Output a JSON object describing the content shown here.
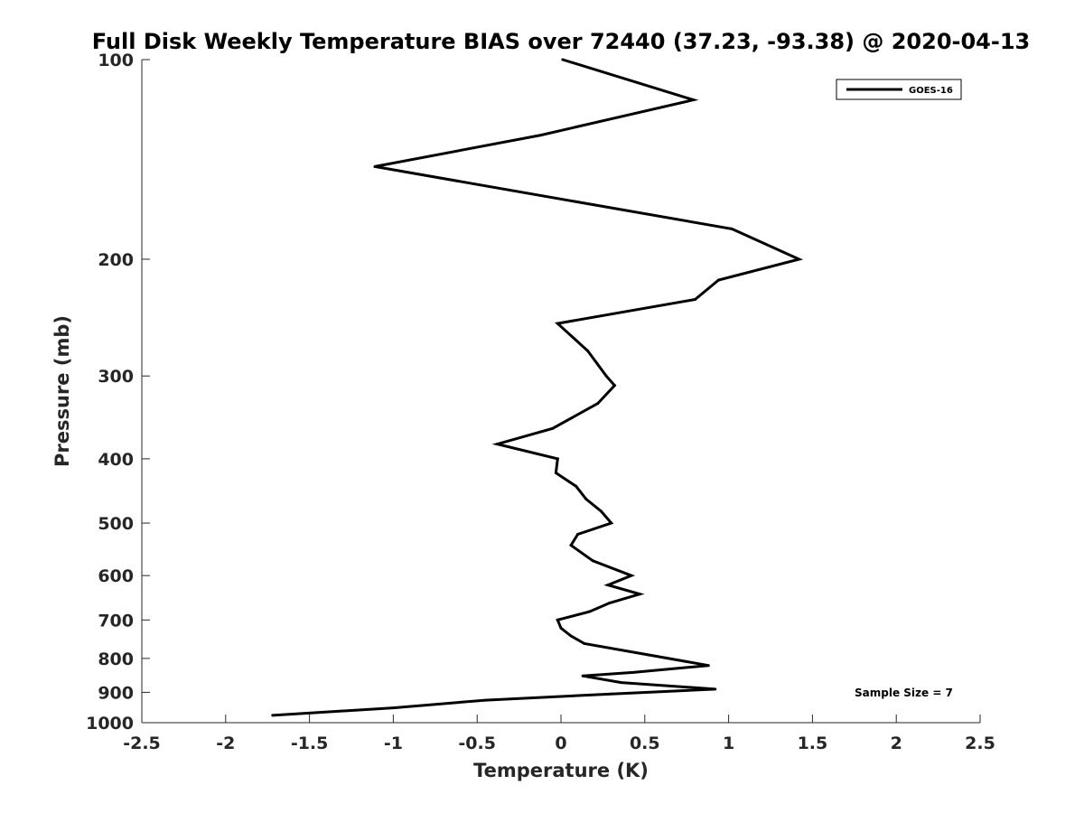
{
  "chart_data": {
    "type": "line",
    "title": "Full Disk Weekly Temperature BIAS over 72440 (37.23, -93.38) @ 2020-04-13",
    "xlabel": "Temperature (K)",
    "ylabel": "Pressure (mb)",
    "xlim": [
      -2.5,
      2.5
    ],
    "ylim": [
      1000,
      100
    ],
    "yscale": "log",
    "grid": false,
    "legend_position": "top-right",
    "x_ticks": [
      -2.5,
      -2,
      -1.5,
      -1,
      -0.5,
      0,
      0.5,
      1,
      1.5,
      2,
      2.5
    ],
    "x_tick_labels": [
      "-2.5",
      "-2",
      "-1.5",
      "-1",
      "-0.5",
      "0",
      "0.5",
      "1",
      "1.5",
      "2",
      "2.5"
    ],
    "y_ticks": [
      100,
      200,
      300,
      400,
      500,
      600,
      700,
      800,
      900,
      1000
    ],
    "y_tick_labels": [
      "100",
      "200",
      "300",
      "400",
      "500",
      "600",
      "700",
      "800",
      "900",
      "1000"
    ],
    "series": [
      {
        "name": "GOES-16",
        "color": "#000000",
        "points": [
          {
            "temp": 0.01,
            "pressure": 100
          },
          {
            "temp": 0.79,
            "pressure": 115
          },
          {
            "temp": -0.12,
            "pressure": 130
          },
          {
            "temp": -1.11,
            "pressure": 145
          },
          {
            "temp": 1.02,
            "pressure": 180
          },
          {
            "temp": 1.42,
            "pressure": 200
          },
          {
            "temp": 0.94,
            "pressure": 215
          },
          {
            "temp": 0.8,
            "pressure": 230
          },
          {
            "temp": -0.02,
            "pressure": 250
          },
          {
            "temp": 0.16,
            "pressure": 275
          },
          {
            "temp": 0.27,
            "pressure": 300
          },
          {
            "temp": 0.32,
            "pressure": 310
          },
          {
            "temp": 0.22,
            "pressure": 330
          },
          {
            "temp": -0.05,
            "pressure": 360
          },
          {
            "temp": -0.38,
            "pressure": 380
          },
          {
            "temp": -0.02,
            "pressure": 400
          },
          {
            "temp": -0.03,
            "pressure": 420
          },
          {
            "temp": 0.09,
            "pressure": 440
          },
          {
            "temp": 0.15,
            "pressure": 460
          },
          {
            "temp": 0.24,
            "pressure": 480
          },
          {
            "temp": 0.3,
            "pressure": 500
          },
          {
            "temp": 0.1,
            "pressure": 520
          },
          {
            "temp": 0.06,
            "pressure": 540
          },
          {
            "temp": 0.19,
            "pressure": 570
          },
          {
            "temp": 0.42,
            "pressure": 600
          },
          {
            "temp": 0.28,
            "pressure": 620
          },
          {
            "temp": 0.47,
            "pressure": 640
          },
          {
            "temp": 0.29,
            "pressure": 660
          },
          {
            "temp": 0.17,
            "pressure": 680
          },
          {
            "temp": -0.02,
            "pressure": 700
          },
          {
            "temp": 0.0,
            "pressure": 720
          },
          {
            "temp": 0.06,
            "pressure": 740
          },
          {
            "temp": 0.14,
            "pressure": 760
          },
          {
            "temp": 0.52,
            "pressure": 790
          },
          {
            "temp": 0.88,
            "pressure": 820
          },
          {
            "temp": 0.43,
            "pressure": 840
          },
          {
            "temp": 0.13,
            "pressure": 850
          },
          {
            "temp": 0.36,
            "pressure": 870
          },
          {
            "temp": 0.92,
            "pressure": 890
          },
          {
            "temp": 0.3,
            "pressure": 905
          },
          {
            "temp": -0.45,
            "pressure": 925
          },
          {
            "temp": -1.0,
            "pressure": 950
          },
          {
            "temp": -1.72,
            "pressure": 975
          }
        ]
      }
    ],
    "annotations": [
      {
        "text": "Sample Size = 7"
      }
    ]
  }
}
